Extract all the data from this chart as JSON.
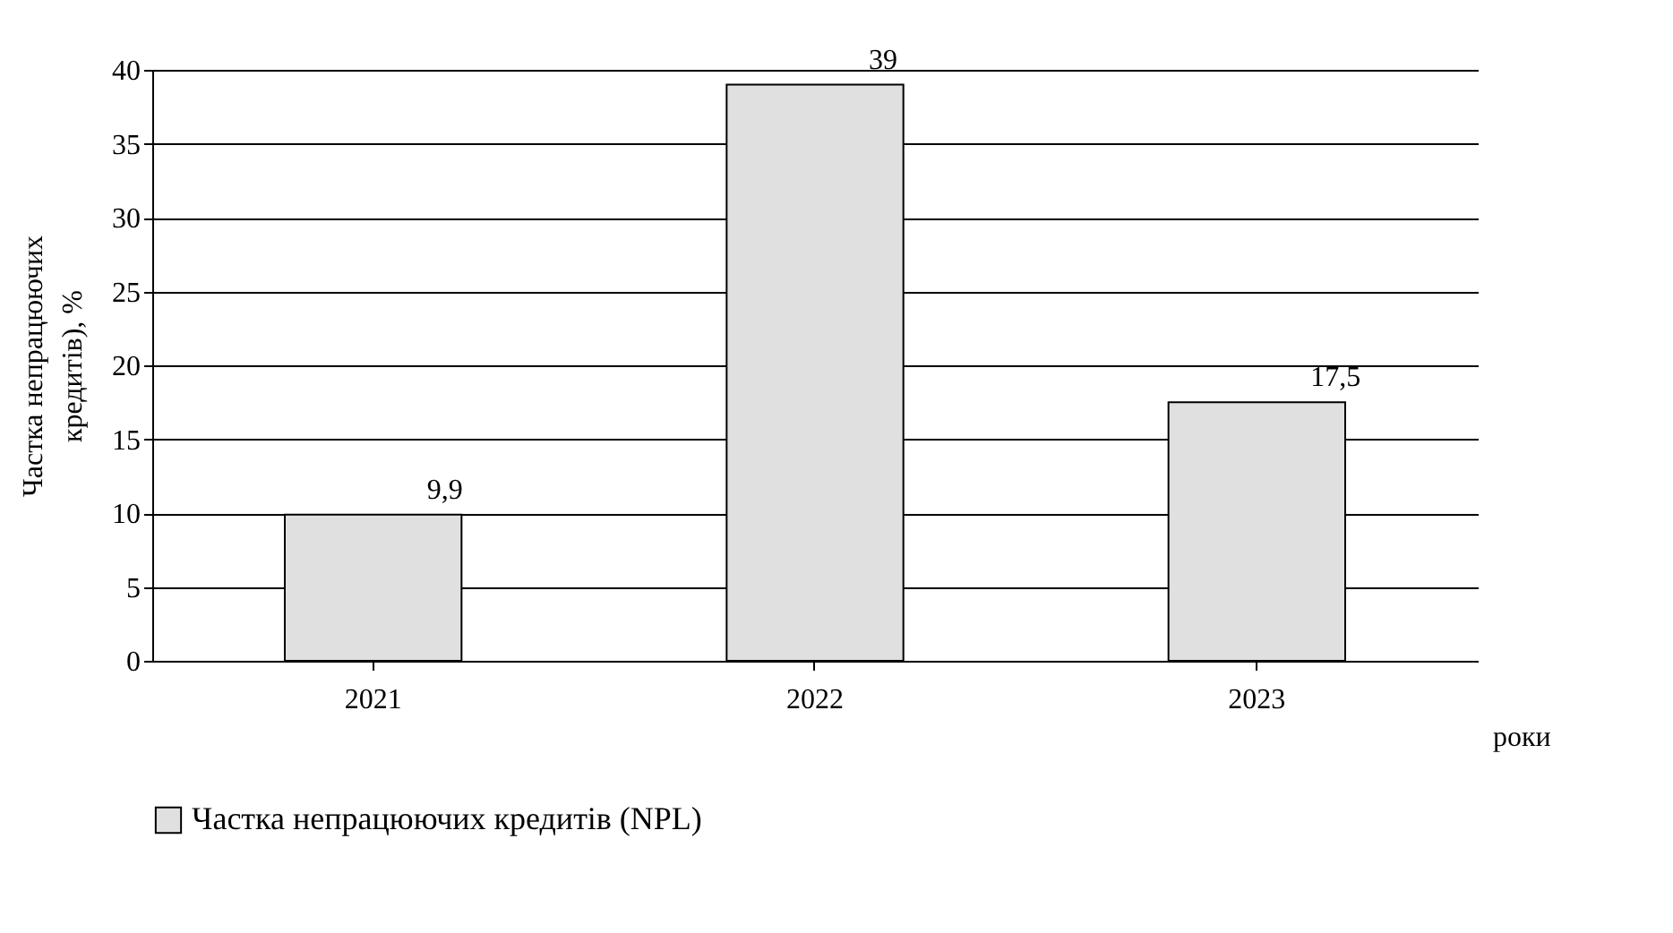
{
  "chart_data": {
    "type": "bar",
    "categories": [
      "2021",
      "2022",
      "2023"
    ],
    "series": [
      {
        "name": "Частка непрацюючих кредитів (NPL)",
        "color": "#e0e0e0",
        "values": [
          9.9,
          39,
          17.5
        ]
      }
    ],
    "value_labels": [
      "9,9",
      "39",
      "17,5"
    ],
    "xlabel": "роки",
    "ylabel": "Частка непрацюючих кредитів), %",
    "ylim": [
      0,
      40
    ],
    "yticks": [
      0,
      5,
      10,
      15,
      20,
      25,
      30,
      35,
      40
    ],
    "grid": "y",
    "legend": "bottom"
  }
}
